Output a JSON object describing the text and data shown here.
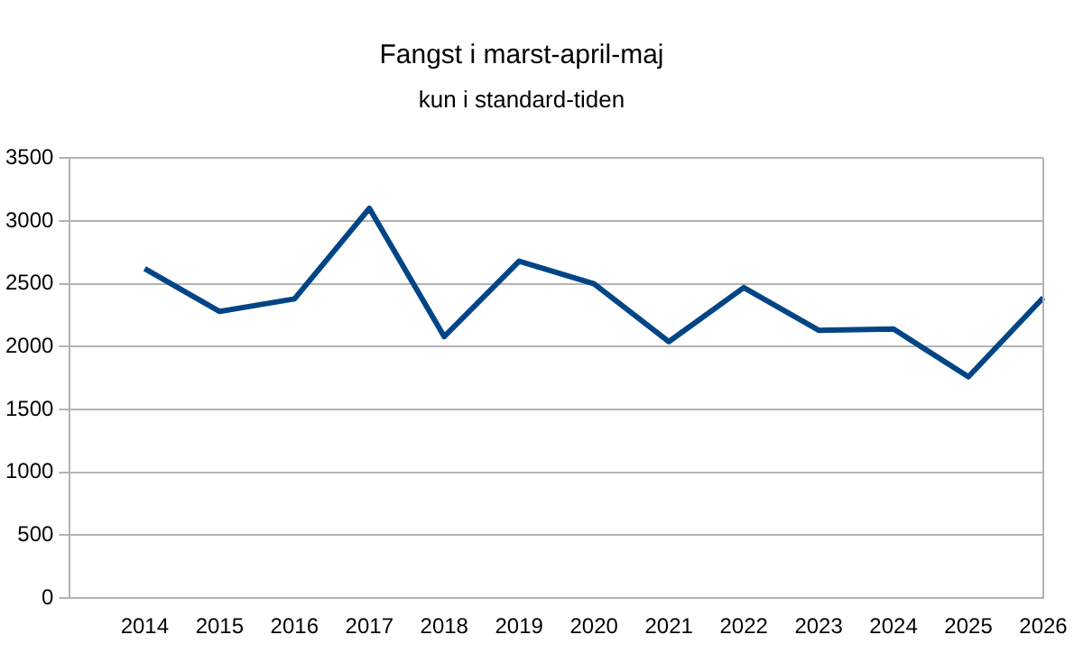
{
  "chart_data": {
    "type": "line",
    "title": "Fangst i marst-april-maj",
    "subtitle": "kun i standard-tiden",
    "categories": [
      null,
      "2014",
      "2015",
      "2016",
      "2017",
      "2018",
      "2019",
      "2020",
      "2021",
      "2022",
      "2023",
      "2024",
      "2025",
      "2026"
    ],
    "series": [
      {
        "color": "#004586",
        "values": [
          null,
          2620,
          2280,
          2380,
          3100,
          2080,
          2680,
          2500,
          2040,
          2470,
          2130,
          2140,
          1760,
          2390
        ]
      }
    ],
    "ylim": [
      0,
      3500
    ],
    "yticks": [
      0,
      500,
      1000,
      1500,
      2000,
      2500,
      3000,
      3500
    ],
    "grid": "y",
    "legend": false,
    "marker": "none",
    "line_style": "solid"
  }
}
